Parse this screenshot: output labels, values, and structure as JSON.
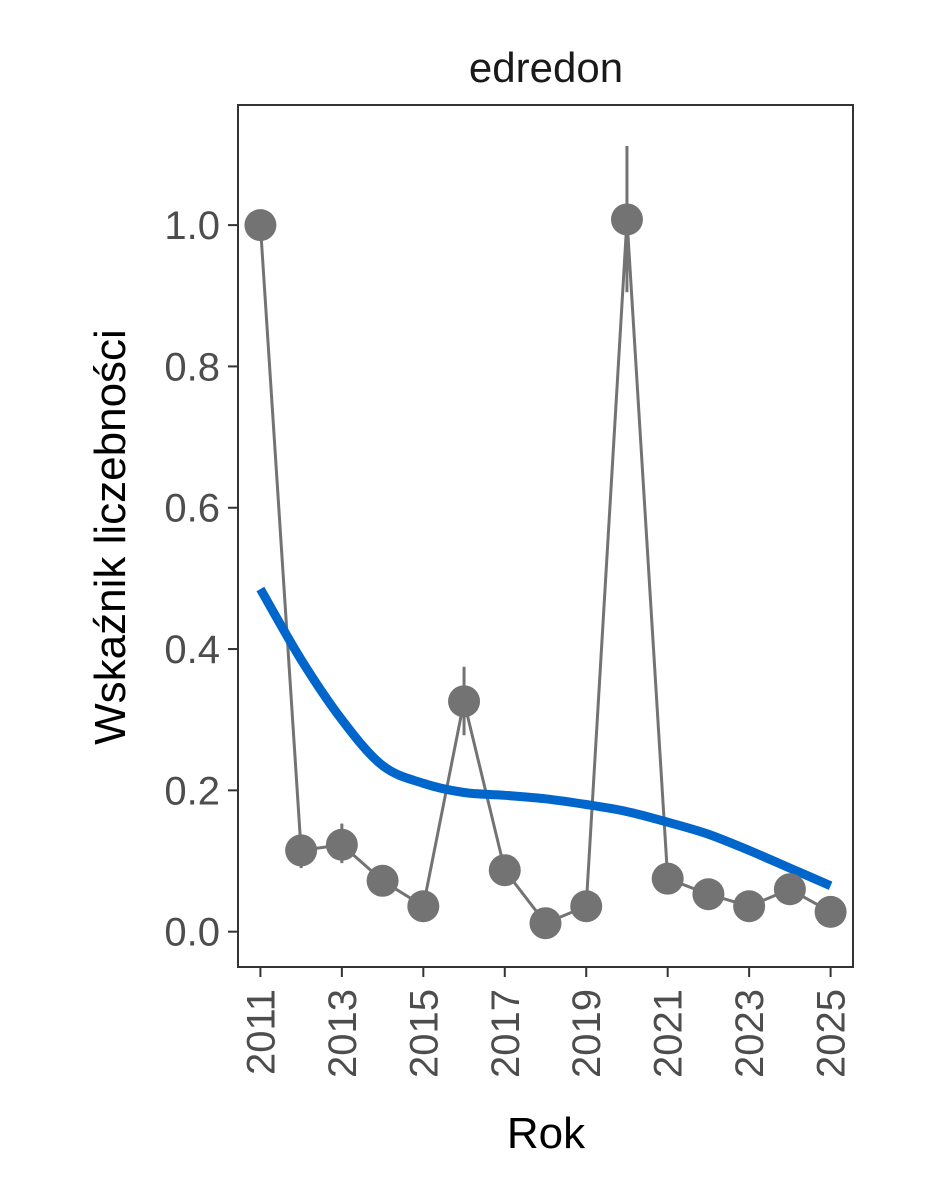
{
  "chart_data": {
    "type": "line",
    "title": "edredon",
    "xlabel": "Rok",
    "ylabel": "Wskaźnik liczebności",
    "xlim": [
      2010.45,
      2025.55
    ],
    "ylim": [
      -0.05,
      1.17
    ],
    "x_ticks": [
      2011,
      2013,
      2015,
      2017,
      2019,
      2021,
      2023,
      2025
    ],
    "y_ticks": [
      0.0,
      0.2,
      0.4,
      0.6,
      0.8,
      1.0
    ],
    "y_tick_labels": [
      "0.0",
      "0.2",
      "0.4",
      "0.6",
      "0.8",
      "1.0"
    ],
    "grid": false,
    "series": [
      {
        "kind": "index",
        "color": "#737373",
        "x": [
          2011,
          2012,
          2013,
          2014,
          2015,
          2016,
          2017,
          2018,
          2019,
          2020,
          2021,
          2022,
          2023,
          2024,
          2025
        ],
        "y": [
          1.0,
          0.115,
          0.123,
          0.072,
          0.036,
          0.326,
          0.087,
          0.012,
          0.036,
          1.008,
          0.075,
          0.053,
          0.036,
          0.06,
          0.028
        ],
        "y_low": [
          null,
          0.09,
          0.097,
          null,
          null,
          0.278,
          null,
          null,
          null,
          0.905,
          null,
          null,
          null,
          null,
          null
        ],
        "y_high": [
          null,
          0.12,
          0.153,
          null,
          null,
          0.375,
          null,
          null,
          null,
          1.112,
          null,
          null,
          null,
          null,
          null
        ]
      },
      {
        "kind": "trend",
        "color": "#0066cc",
        "x": [
          2011,
          2012,
          2013,
          2014,
          2015,
          2016,
          2017,
          2018,
          2019,
          2020,
          2021,
          2022,
          2023,
          2024,
          2025
        ],
        "y": [
          0.485,
          0.385,
          0.3,
          0.235,
          0.21,
          0.197,
          0.193,
          0.188,
          0.18,
          0.17,
          0.155,
          0.138,
          0.115,
          0.09,
          0.065
        ]
      }
    ]
  }
}
